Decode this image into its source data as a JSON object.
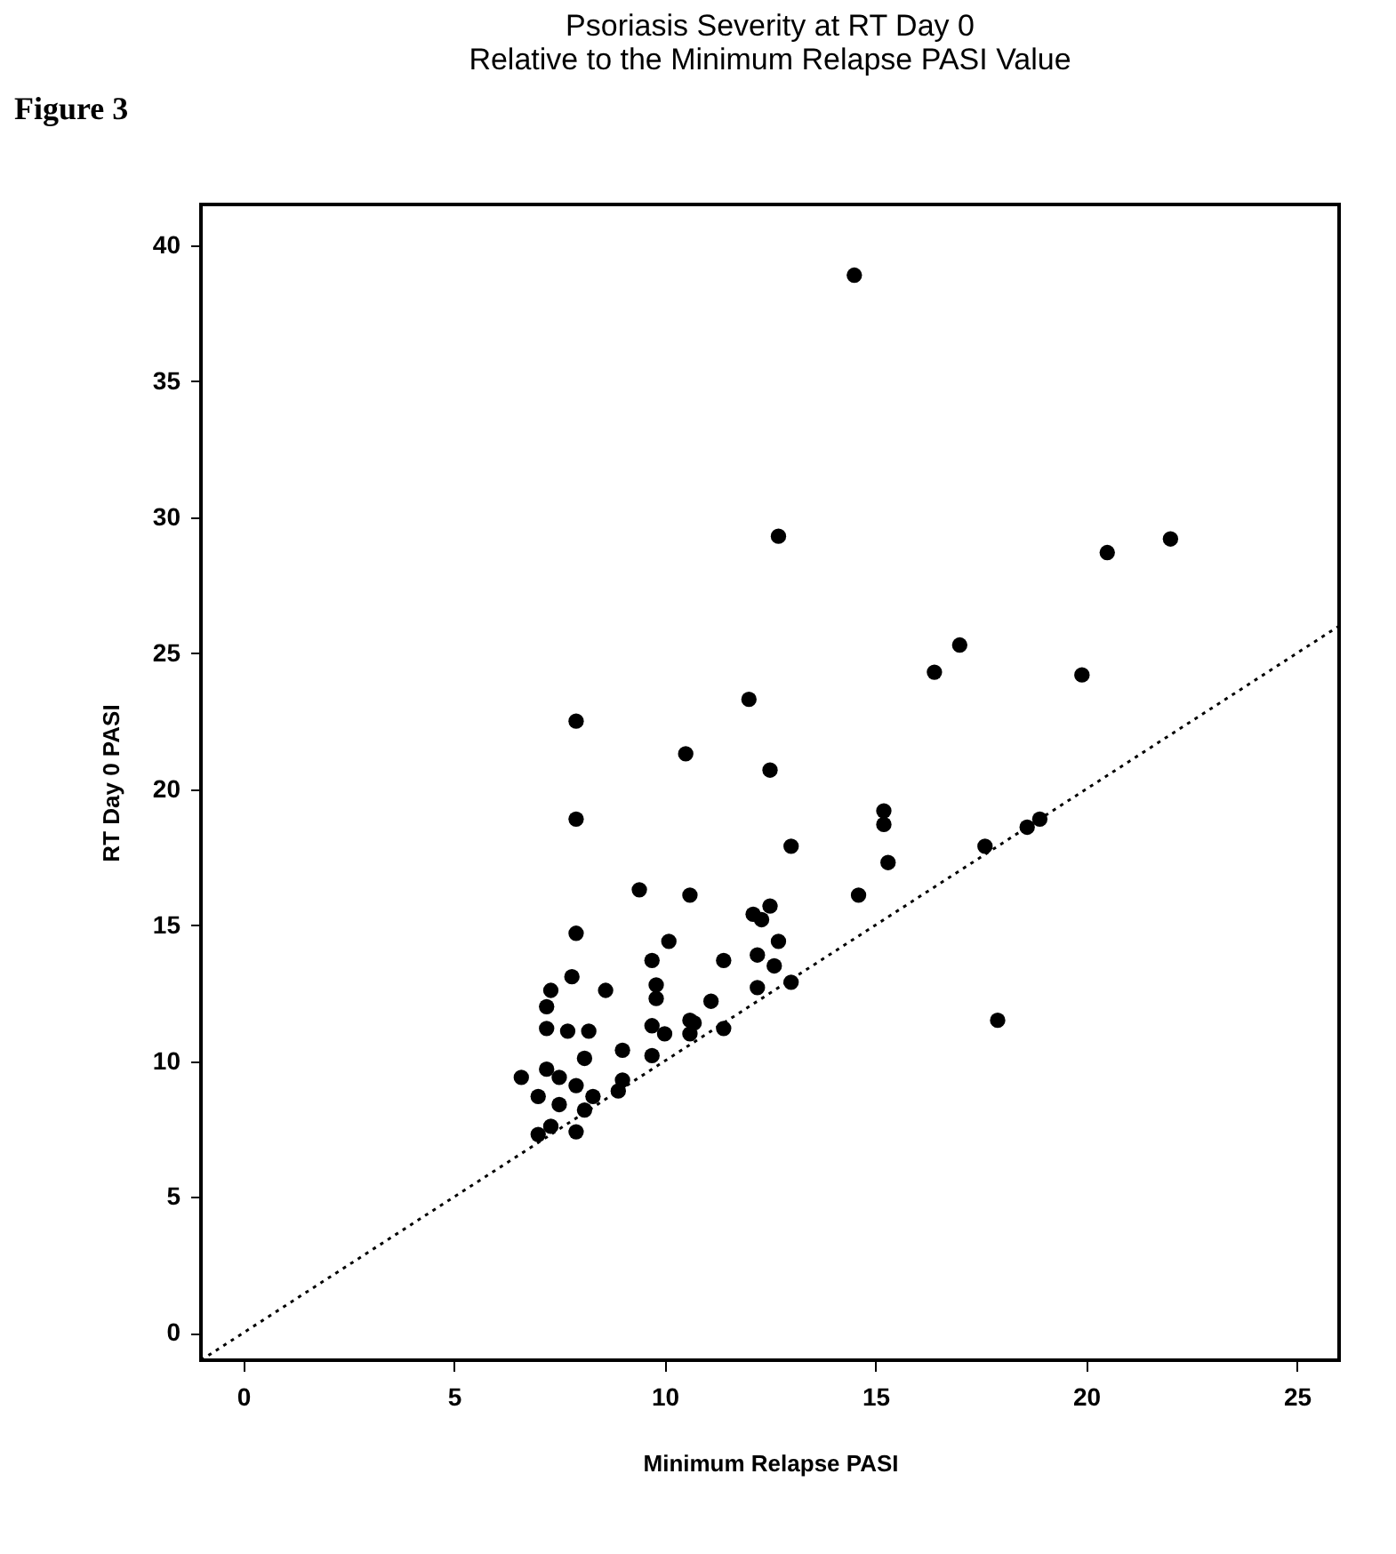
{
  "chart_data": {
    "type": "scatter",
    "title": [
      "Psoriasis Severity at RT Day 0",
      "Relative to the Minimum Relapse PASI Value"
    ],
    "xlabel": "Minimum Relapse PASI",
    "ylabel": "RT Day 0 PASI",
    "annotations": [
      "Figure 3"
    ],
    "xlim": [
      -1,
      26
    ],
    "ylim": [
      -1,
      41.5
    ],
    "xticks": [
      0,
      5,
      10,
      15,
      20,
      25
    ],
    "yticks": [
      0,
      5,
      10,
      15,
      20,
      25,
      30,
      35,
      40
    ],
    "grid": false,
    "series": [
      {
        "color": "#000000",
        "marker": "circle",
        "x": [
          12.7,
          7.9,
          12.0,
          10.5,
          12.5,
          7.9,
          15.2,
          15.2,
          13.0,
          15.3,
          9.4,
          10.6,
          14.6,
          7.9,
          12.1,
          12.5,
          12.3,
          10.1,
          9.7,
          11.4,
          12.2,
          12.7,
          12.6,
          13.0,
          12.2,
          7.8,
          8.6,
          9.8,
          9.8,
          11.1,
          7.3,
          7.2,
          7.2,
          7.7,
          8.2,
          9.7,
          10.0,
          10.6,
          10.7,
          10.6,
          11.4,
          8.1,
          9.0,
          9.7,
          6.6,
          7.2,
          7.5,
          7.9,
          8.3,
          7.0,
          7.5,
          8.1,
          8.9,
          9.0,
          7.0,
          7.3,
          7.9,
          14.5,
          20.5,
          22.0,
          17.0,
          16.4,
          19.9,
          17.6,
          18.6,
          18.9,
          17.9
        ],
        "values": [
          29.3,
          22.5,
          23.3,
          21.3,
          20.7,
          18.9,
          19.2,
          18.7,
          17.9,
          17.3,
          16.3,
          16.1,
          16.1,
          14.7,
          15.4,
          15.7,
          15.2,
          14.4,
          13.7,
          13.7,
          13.9,
          14.4,
          13.5,
          12.9,
          12.7,
          13.1,
          12.6,
          12.8,
          12.3,
          12.2,
          12.6,
          12.0,
          11.2,
          11.1,
          11.1,
          11.3,
          11.0,
          11.5,
          11.4,
          11.0,
          11.2,
          10.1,
          10.4,
          10.2,
          9.4,
          9.7,
          9.4,
          9.1,
          8.7,
          8.7,
          8.4,
          8.2,
          8.9,
          9.3,
          7.3,
          7.6,
          7.4,
          38.9,
          28.7,
          29.2,
          25.3,
          24.3,
          24.2,
          17.9,
          18.6,
          18.9,
          11.5
        ]
      },
      {
        "type": "line",
        "color": "#000000",
        "line_style": "dotted",
        "x": [
          -1,
          26
        ],
        "values": [
          -1,
          26
        ]
      }
    ]
  }
}
